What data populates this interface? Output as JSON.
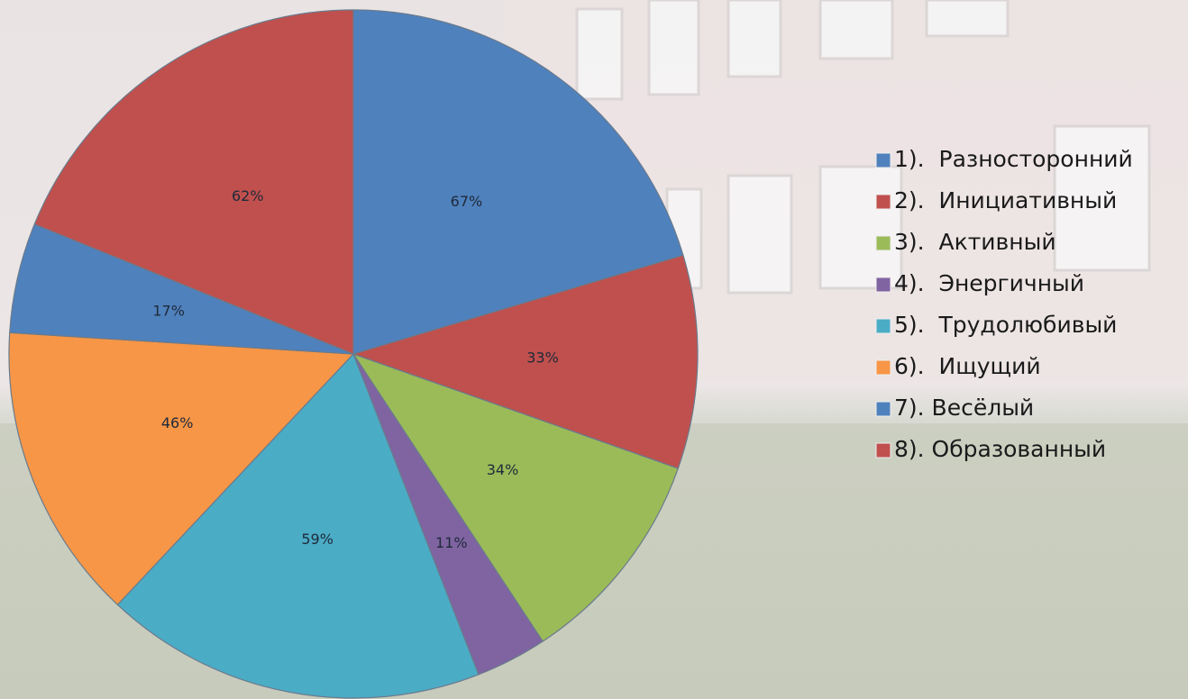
{
  "chart_data": {
    "type": "pie",
    "categories": [
      "1).  Разносторонний",
      "2).  Инициативный",
      "3).  Активный",
      "4).  Энергичный",
      "5).  Трудолюбивый",
      "6).  Ищущий",
      "7). Весёлый",
      "8). Образованный"
    ],
    "values": [
      67,
      33,
      34,
      11,
      59,
      46,
      17,
      62
    ],
    "value_labels": [
      "67%",
      "33%",
      "34%",
      "11%",
      "59%",
      "46%",
      "17%",
      "62%"
    ],
    "colors": [
      "#4f81bd",
      "#c0504d",
      "#9bbb59",
      "#8064a2",
      "#4bacc6",
      "#f79646",
      "#4f81bd",
      "#c0504d"
    ],
    "legend": "right"
  }
}
